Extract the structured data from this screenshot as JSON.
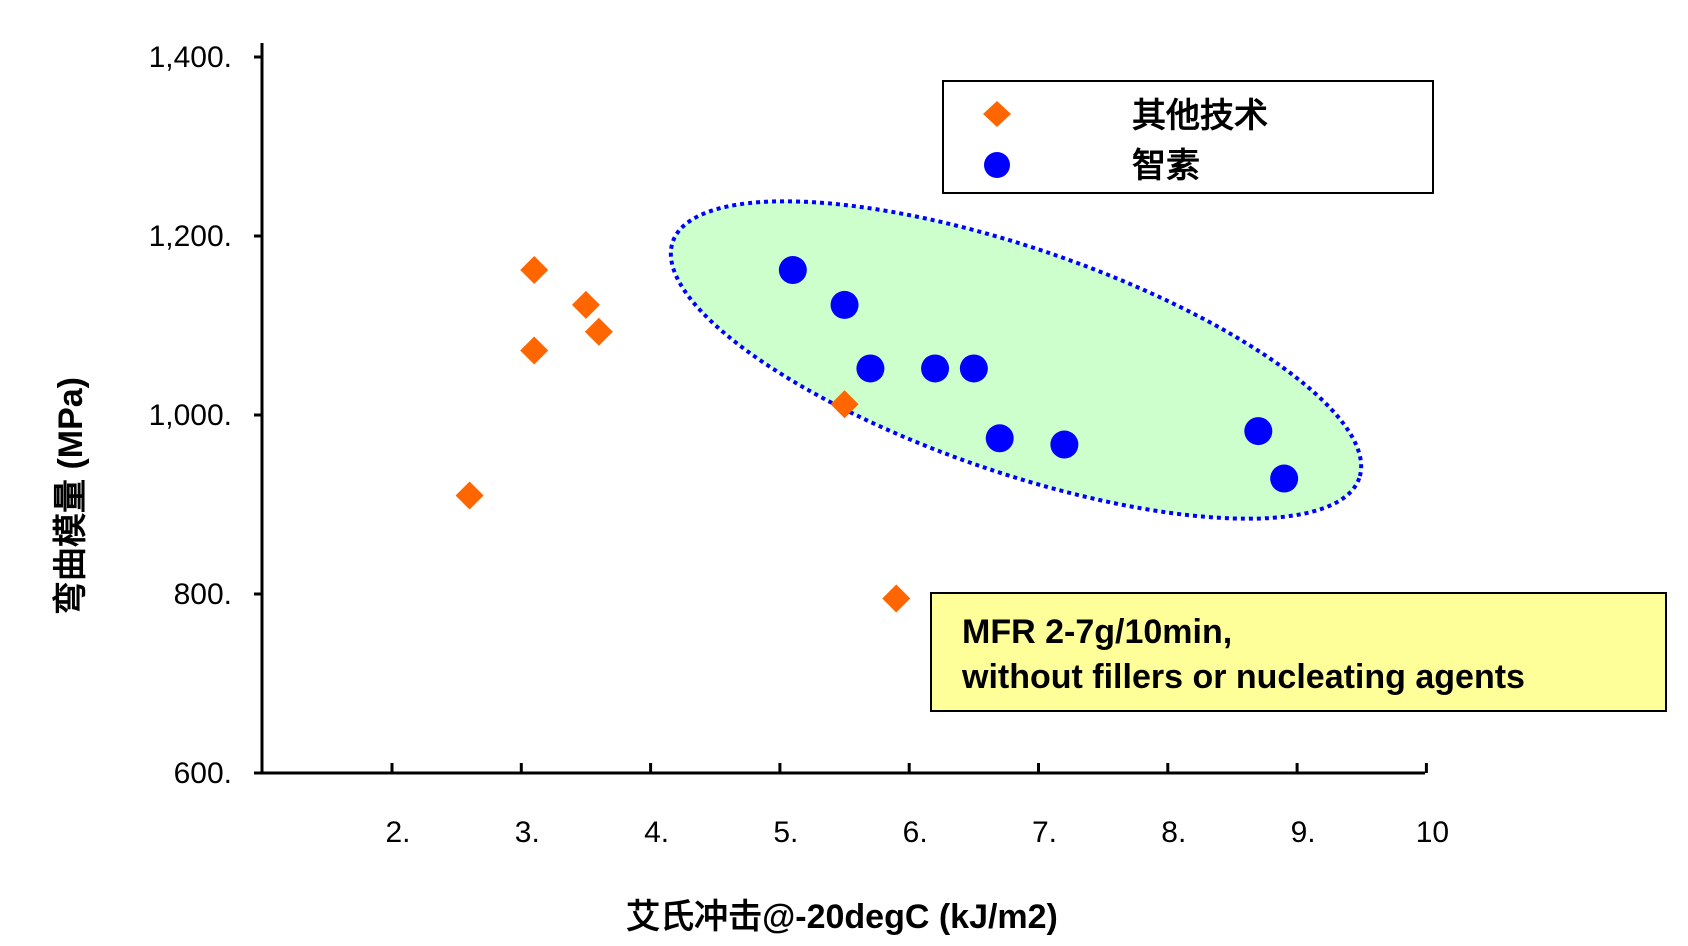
{
  "chart_data": {
    "type": "scatter",
    "title": "",
    "xlabel": "艾氏冲击@-20degC  (kJ/m2)",
    "ylabel": "弯曲模量   (MPa)",
    "xlim": [
      1,
      10
    ],
    "ylim": [
      600,
      1400
    ],
    "x_ticks": [
      2,
      3,
      4,
      5,
      6,
      7,
      8,
      9,
      10
    ],
    "x_tick_labels": [
      "2.",
      "3.",
      "4.",
      "5.",
      "6.",
      "7.",
      "8.",
      "9.",
      "10"
    ],
    "y_ticks": [
      600,
      800,
      1000,
      1200,
      1400
    ],
    "y_tick_labels": [
      "600.",
      "800.",
      "1,000.",
      "1,200.",
      "1,400."
    ],
    "grid": false,
    "legend_position": "top-right",
    "series": [
      {
        "name": "其他技术",
        "marker": "diamond",
        "color": "#FF6600",
        "points": [
          {
            "x": 2.6,
            "y": 910
          },
          {
            "x": 3.1,
            "y": 1162
          },
          {
            "x": 3.1,
            "y": 1072
          },
          {
            "x": 3.5,
            "y": 1123
          },
          {
            "x": 3.6,
            "y": 1093
          },
          {
            "x": 5.5,
            "y": 1012
          },
          {
            "x": 5.9,
            "y": 795
          }
        ]
      },
      {
        "name": "智素",
        "marker": "circle",
        "color": "#0000FF",
        "points": [
          {
            "x": 5.1,
            "y": 1162
          },
          {
            "x": 5.5,
            "y": 1123
          },
          {
            "x": 5.7,
            "y": 1052
          },
          {
            "x": 6.2,
            "y": 1052
          },
          {
            "x": 6.5,
            "y": 1052
          },
          {
            "x": 6.7,
            "y": 974
          },
          {
            "x": 7.2,
            "y": 967
          },
          {
            "x": 8.7,
            "y": 982
          },
          {
            "x": 8.9,
            "y": 929
          }
        ]
      }
    ],
    "highlight_region": {
      "fill": "#CCFFCC",
      "border": "#0000FF"
    },
    "annotation": {
      "lines": [
        "MFR 2-7g/10min,",
        "without fillers or nucleating agents"
      ],
      "fill": "#FFFF99"
    }
  }
}
